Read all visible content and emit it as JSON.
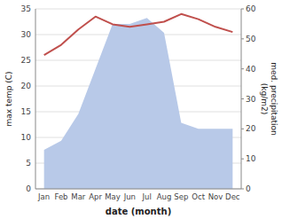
{
  "chart_data": {
    "type": "line",
    "categories": [
      "Jan",
      "Feb",
      "Mar",
      "Apr",
      "May",
      "Jun",
      "Jul",
      "Aug",
      "Sep",
      "Oct",
      "Nov",
      "Dec"
    ],
    "xlabel": "date (month)",
    "ylabel": "max temp (C)",
    "y2label": "med. precipitation\n(kg/m2)",
    "ylim": [
      0,
      35
    ],
    "yticks": [
      0,
      5,
      10,
      15,
      20,
      25,
      30,
      35
    ],
    "y2lim": [
      0,
      60
    ],
    "y2ticks": [
      0,
      10,
      20,
      30,
      40,
      50,
      60
    ],
    "grid": true,
    "series": [
      {
        "type": "area",
        "axis": "y2",
        "color": "#b8c9e8",
        "values": [
          13,
          16,
          25,
          40,
          55,
          55,
          57,
          52,
          22,
          20,
          20,
          20
        ]
      },
      {
        "type": "line",
        "color": "#c0504d",
        "values": [
          26,
          28,
          31,
          33.5,
          32,
          31.5,
          32,
          32.5,
          34,
          33,
          31.5,
          30.5
        ]
      }
    ]
  }
}
